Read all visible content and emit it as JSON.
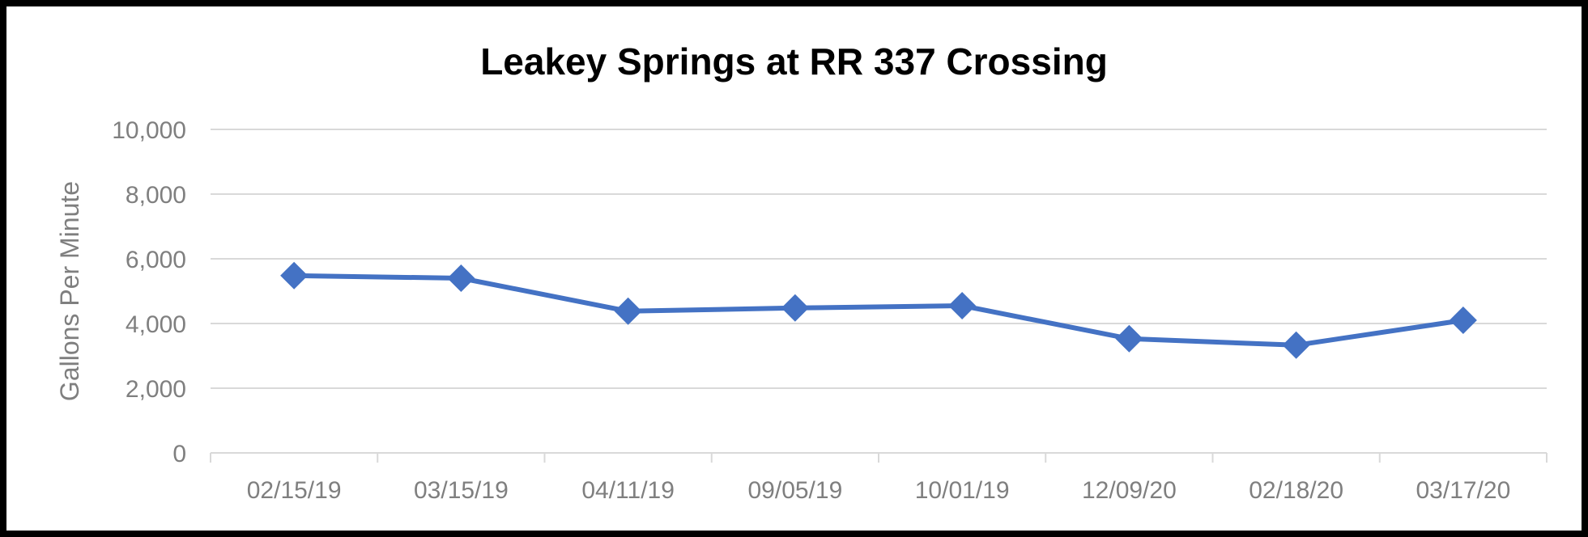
{
  "chart_data": {
    "type": "line",
    "title": "Leakey Springs at RR 337 Crossing",
    "xlabel": "",
    "ylabel": "Gallons Per Minute",
    "categories": [
      "02/15/19",
      "03/15/19",
      "04/11/19",
      "09/05/19",
      "10/01/19",
      "12/09/20",
      "02/18/20",
      "03/17/20"
    ],
    "series": [
      {
        "values": [
          5480,
          5400,
          4380,
          4480,
          4550,
          3530,
          3330,
          4100
        ]
      }
    ],
    "ylim": [
      0,
      10000
    ],
    "yticks": [
      0,
      2000,
      4000,
      6000,
      8000,
      10000
    ],
    "ytick_labels": [
      "0",
      "2,000",
      "4,000",
      "6,000",
      "8,000",
      "10,000"
    ],
    "grid": true,
    "legend": "none",
    "marker": "diamond",
    "colors": {
      "series": "#4472c4",
      "grid": "#d9d9d9",
      "tick_text": "#7f7f7f",
      "frame": "#000000"
    }
  }
}
